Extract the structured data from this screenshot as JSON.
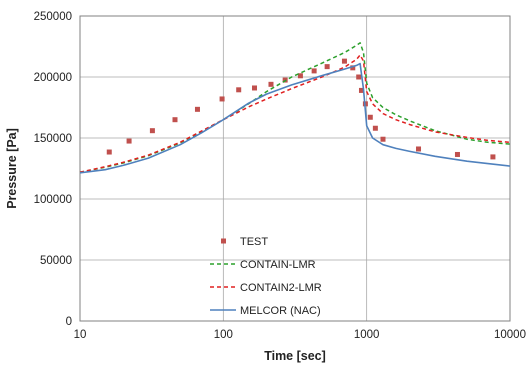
{
  "chart_data": {
    "type": "line",
    "xlabel": "Time [sec]",
    "ylabel": "Pressure [Pa]",
    "x_scale": "log",
    "xlim": [
      10,
      10000
    ],
    "ylim": [
      0,
      250000
    ],
    "x_ticks": [
      10,
      100,
      1000,
      10000
    ],
    "x_tick_labels": [
      "10",
      "100",
      "1000",
      "10000"
    ],
    "y_ticks": [
      0,
      50000,
      100000,
      150000,
      200000,
      250000
    ],
    "y_tick_labels": [
      "0",
      "50000",
      "100000",
      "150000",
      "200000",
      "250000"
    ],
    "grid": true,
    "legend_position": "center-bottom",
    "series": [
      {
        "name": "TEST",
        "style": "markers",
        "color": "#c0504d",
        "x": [
          16,
          22,
          32,
          46,
          66,
          98,
          128,
          165,
          215,
          270,
          345,
          430,
          530,
          700,
          800,
          880,
          920,
          980,
          1060,
          1150,
          1300,
          2300,
          4300,
          7600
        ],
        "y": [
          138500,
          147500,
          156000,
          165000,
          173500,
          182000,
          189500,
          191000,
          194000,
          197500,
          201000,
          205000,
          208500,
          213000,
          207500,
          200000,
          189000,
          178000,
          167000,
          158000,
          149000,
          141000,
          136500,
          134500
        ]
      },
      {
        "name": "CONTAIN-LMR",
        "style": "dashed",
        "color": "#2ca02c",
        "x": [
          10,
          15,
          20,
          30,
          50,
          70,
          100,
          150,
          200,
          300,
          500,
          700,
          850,
          900,
          950,
          1000,
          1100,
          1300,
          1600,
          2000,
          3000,
          5000,
          7000,
          10000
        ],
        "y": [
          122000,
          126000,
          129500,
          135500,
          146000,
          155000,
          165000,
          178000,
          188000,
          200000,
          212000,
          220000,
          226000,
          228000,
          220000,
          195000,
          183000,
          175000,
          169000,
          164000,
          156000,
          149000,
          146500,
          145000
        ]
      },
      {
        "name": "CONTAIN2-LMR",
        "style": "dashed",
        "color": "#e02020",
        "x": [
          10,
          15,
          20,
          30,
          50,
          70,
          100,
          150,
          200,
          300,
          500,
          700,
          850,
          900,
          950,
          1000,
          1100,
          1300,
          1600,
          2000,
          3000,
          5000,
          7000,
          10000
        ],
        "y": [
          122000,
          126500,
          130000,
          136000,
          146500,
          155500,
          165000,
          175500,
          182000,
          190500,
          200500,
          208000,
          214500,
          218000,
          213000,
          188000,
          178000,
          170000,
          165000,
          161000,
          155000,
          150500,
          148000,
          146500
        ]
      },
      {
        "name": "MELCOR (NAC)",
        "style": "solid",
        "color": "#4f81bd",
        "x": [
          10,
          15,
          20,
          30,
          50,
          70,
          100,
          150,
          200,
          300,
          500,
          700,
          850,
          900,
          950,
          1000,
          1100,
          1300,
          1600,
          2000,
          3000,
          5000,
          7000,
          10000
        ],
        "y": [
          121500,
          124000,
          127500,
          133500,
          144500,
          154000,
          165000,
          178500,
          186000,
          193500,
          201500,
          206500,
          209500,
          211000,
          190000,
          160000,
          150000,
          144500,
          141500,
          139000,
          135000,
          131000,
          129000,
          127000
        ]
      }
    ]
  }
}
